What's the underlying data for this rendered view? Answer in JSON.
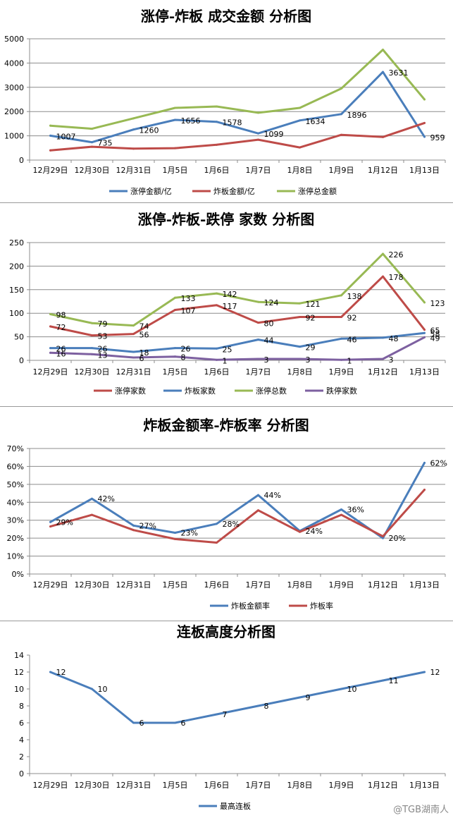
{
  "chart_data": [
    {
      "type": "line",
      "title": "涨停-炸板 成交金额 分析图",
      "categories": [
        "12月29日",
        "12月30日",
        "12月31日",
        "1月5日",
        "1月6日",
        "1月7日",
        "1月8日",
        "1月9日",
        "1月12日",
        "1月13日"
      ],
      "ylim": [
        0,
        5000
      ],
      "yticks": [
        "0",
        "1000",
        "2000",
        "3000",
        "4000",
        "5000"
      ],
      "grid": true,
      "legend_position": "bottom",
      "series": [
        {
          "name": "涨停金额/亿",
          "color": "#4a7ebb",
          "values": [
            1007,
            735,
            1260,
            1656,
            1578,
            1099,
            1634,
            1896,
            3631,
            959
          ],
          "labels": [
            "1007",
            "735",
            "1260",
            "1656",
            "1578",
            "1099",
            "1634",
            "1896",
            "3631",
            "959"
          ]
        },
        {
          "name": "炸板金额/亿",
          "color": "#be4b48",
          "values": [
            400,
            550,
            470,
            490,
            630,
            840,
            520,
            1040,
            950,
            1530
          ],
          "labels": [
            "",
            "",
            "",
            "",
            "",
            "",
            "",
            "",
            "",
            ""
          ]
        },
        {
          "name": "涨停总金额",
          "color": "#98b954",
          "values": [
            1420,
            1290,
            1720,
            2150,
            2210,
            1950,
            2150,
            2950,
            4550,
            2500
          ],
          "labels": [
            "",
            "",
            "",
            "",
            "",
            "",
            "",
            "",
            "",
            ""
          ]
        }
      ]
    },
    {
      "type": "line",
      "title": "涨停-炸板-跌停 家数 分析图",
      "categories": [
        "12月29日",
        "12月30日",
        "12月31日",
        "1月5日",
        "1月6日",
        "1月7日",
        "1月8日",
        "1月9日",
        "1月12日",
        "1月13日"
      ],
      "ylim": [
        0,
        250
      ],
      "yticks": [
        "0",
        "50",
        "100",
        "150",
        "200",
        "250"
      ],
      "grid": true,
      "legend_position": "bottom",
      "series": [
        {
          "name": "涨停家数",
          "color": "#be4b48",
          "values": [
            72,
            53,
            56,
            107,
            117,
            80,
            92,
            92,
            178,
            65
          ],
          "labels": [
            "72",
            "53",
            "56",
            "107",
            "117",
            "80",
            "92",
            "92",
            "178",
            "65"
          ]
        },
        {
          "name": "炸板家数",
          "color": "#4a7ebb",
          "values": [
            26,
            26,
            18,
            26,
            25,
            44,
            29,
            46,
            48,
            58
          ],
          "labels": [
            "26",
            "26",
            "18",
            "26",
            "25",
            "44",
            "29",
            "46",
            "48",
            "58"
          ]
        },
        {
          "name": "涨停总数",
          "color": "#98b954",
          "values": [
            98,
            79,
            74,
            133,
            142,
            124,
            121,
            138,
            226,
            123
          ],
          "labels": [
            "98",
            "79",
            "74",
            "133",
            "142",
            "124",
            "121",
            "138",
            "226",
            "123"
          ]
        },
        {
          "name": "跌停家数",
          "color": "#7d60a0",
          "values": [
            16,
            13,
            6,
            8,
            1,
            3,
            3,
            1,
            3,
            49
          ],
          "labels": [
            "16",
            "13",
            "6",
            "8",
            "1",
            "3",
            "3",
            "1",
            "3",
            "49"
          ]
        }
      ]
    },
    {
      "type": "line",
      "title": "炸板金额率-炸板率 分析图",
      "categories": [
        "12月29日",
        "12月30日",
        "12月31日",
        "1月5日",
        "1月6日",
        "1月7日",
        "1月8日",
        "1月9日",
        "1月12日",
        "1月13日"
      ],
      "ylim": [
        0,
        70
      ],
      "yticks": [
        "0%",
        "10%",
        "20%",
        "30%",
        "40%",
        "50%",
        "60%",
        "70%"
      ],
      "grid": true,
      "legend_position": "bottom",
      "series": [
        {
          "name": "炸板金额率",
          "color": "#4a7ebb",
          "values": [
            29,
            42,
            27,
            23,
            28,
            44,
            24,
            36,
            20,
            62
          ],
          "labels": [
            "29%",
            "42%",
            "27%",
            "23%",
            "28%",
            "44%",
            "24%",
            "36%",
            "20%",
            "62%"
          ]
        },
        {
          "name": "炸板率",
          "color": "#be4b48",
          "values": [
            26.5,
            33,
            24.5,
            19.5,
            17.5,
            35.5,
            23.5,
            33,
            21,
            47
          ],
          "labels": [
            "",
            "",
            "",
            "",
            "",
            "",
            "",
            "",
            "",
            ""
          ]
        }
      ]
    },
    {
      "type": "line",
      "title": "连板高度分析图",
      "categories": [
        "12月29日",
        "12月30日",
        "12月31日",
        "1月5日",
        "1月6日",
        "1月7日",
        "1月8日",
        "1月9日",
        "1月12日",
        "1月13日"
      ],
      "ylim": [
        0,
        14
      ],
      "yticks": [
        "0",
        "2",
        "4",
        "6",
        "8",
        "10",
        "12",
        "14"
      ],
      "grid": false,
      "legend_position": "bottom",
      "series": [
        {
          "name": "最高连板",
          "color": "#4a7ebb",
          "values": [
            12,
            10,
            6,
            6,
            7,
            8,
            9,
            10,
            11,
            12
          ],
          "labels": [
            "12",
            "10",
            "6",
            "6",
            "7",
            "8",
            "9",
            "10",
            "11",
            "12"
          ]
        }
      ]
    }
  ],
  "watermark": "@TGB湖南人"
}
